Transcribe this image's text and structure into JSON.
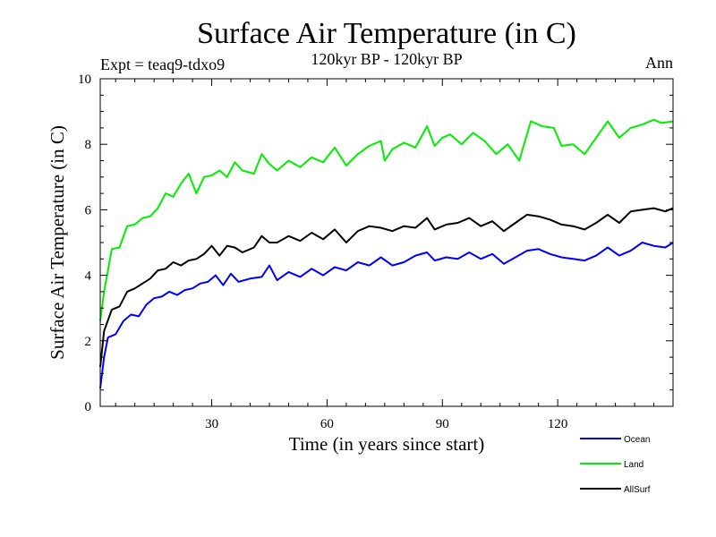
{
  "chart_data": {
    "type": "line",
    "title": "Surface Air Temperature (in C)",
    "subtitle": "120kyr BP - 120kyr BP",
    "experiment_label": "Expt = teaq9-tdxo9",
    "period_label": "Ann",
    "xlabel": "Time (in years since start)",
    "ylabel": "Surface Air Temperature (in C)",
    "xlim": [
      1,
      150
    ],
    "ylim": [
      0,
      10
    ],
    "x_ticks": [
      30,
      60,
      90,
      120
    ],
    "x_tick_labels": [
      "30",
      "60",
      "90",
      "120"
    ],
    "y_ticks": [
      0,
      2,
      4,
      6,
      8,
      10
    ],
    "y_tick_labels": [
      "0",
      "2",
      "4",
      "6",
      "8",
      "10"
    ],
    "y_minor_step": 0.5,
    "x_minor_step": 5,
    "legend_position": "bottom-right",
    "series": [
      {
        "name": "Ocean",
        "color": "#0000ff",
        "points": [
          [
            1,
            0.55
          ],
          [
            2,
            1.5
          ],
          [
            3,
            2.1
          ],
          [
            5,
            2.2
          ],
          [
            7,
            2.6
          ],
          [
            9,
            2.8
          ],
          [
            11,
            2.75
          ],
          [
            13,
            3.1
          ],
          [
            15,
            3.3
          ],
          [
            17,
            3.35
          ],
          [
            19,
            3.5
          ],
          [
            21,
            3.4
          ],
          [
            23,
            3.55
          ],
          [
            25,
            3.6
          ],
          [
            27,
            3.75
          ],
          [
            29,
            3.8
          ],
          [
            31,
            4.0
          ],
          [
            33,
            3.7
          ],
          [
            35,
            4.05
          ],
          [
            37,
            3.8
          ],
          [
            40,
            3.9
          ],
          [
            43,
            3.95
          ],
          [
            45,
            4.3
          ],
          [
            47,
            3.85
          ],
          [
            50,
            4.1
          ],
          [
            53,
            3.95
          ],
          [
            56,
            4.2
          ],
          [
            59,
            4.0
          ],
          [
            62,
            4.25
          ],
          [
            65,
            4.15
          ],
          [
            68,
            4.4
          ],
          [
            71,
            4.3
          ],
          [
            74,
            4.55
          ],
          [
            77,
            4.3
          ],
          [
            80,
            4.4
          ],
          [
            83,
            4.6
          ],
          [
            86,
            4.7
          ],
          [
            88,
            4.45
          ],
          [
            91,
            4.55
          ],
          [
            94,
            4.5
          ],
          [
            97,
            4.7
          ],
          [
            100,
            4.5
          ],
          [
            103,
            4.65
          ],
          [
            106,
            4.35
          ],
          [
            109,
            4.55
          ],
          [
            112,
            4.75
          ],
          [
            115,
            4.8
          ],
          [
            118,
            4.65
          ],
          [
            121,
            4.55
          ],
          [
            124,
            4.5
          ],
          [
            127,
            4.45
          ],
          [
            130,
            4.6
          ],
          [
            133,
            4.85
          ],
          [
            136,
            4.6
          ],
          [
            139,
            4.75
          ],
          [
            142,
            5.0
          ],
          [
            145,
            4.9
          ],
          [
            148,
            4.85
          ],
          [
            150,
            5.0
          ]
        ]
      },
      {
        "name": "Land",
        "color": "#00ee00",
        "points": [
          [
            1,
            2.6
          ],
          [
            2,
            3.5
          ],
          [
            4,
            4.8
          ],
          [
            6,
            4.85
          ],
          [
            8,
            5.5
          ],
          [
            10,
            5.55
          ],
          [
            12,
            5.75
          ],
          [
            14,
            5.8
          ],
          [
            16,
            6.05
          ],
          [
            18,
            6.5
          ],
          [
            20,
            6.4
          ],
          [
            22,
            6.8
          ],
          [
            24,
            7.1
          ],
          [
            26,
            6.5
          ],
          [
            28,
            7.0
          ],
          [
            30,
            7.05
          ],
          [
            32,
            7.2
          ],
          [
            34,
            7.0
          ],
          [
            36,
            7.45
          ],
          [
            38,
            7.2
          ],
          [
            41,
            7.1
          ],
          [
            43,
            7.7
          ],
          [
            45,
            7.4
          ],
          [
            47,
            7.2
          ],
          [
            50,
            7.5
          ],
          [
            53,
            7.3
          ],
          [
            56,
            7.6
          ],
          [
            59,
            7.45
          ],
          [
            62,
            7.9
          ],
          [
            65,
            7.35
          ],
          [
            68,
            7.7
          ],
          [
            71,
            7.95
          ],
          [
            74,
            8.1
          ],
          [
            75,
            7.5
          ],
          [
            77,
            7.85
          ],
          [
            80,
            8.05
          ],
          [
            83,
            7.9
          ],
          [
            86,
            8.55
          ],
          [
            88,
            7.95
          ],
          [
            90,
            8.2
          ],
          [
            92,
            8.3
          ],
          [
            95,
            8.0
          ],
          [
            98,
            8.35
          ],
          [
            101,
            8.1
          ],
          [
            104,
            7.7
          ],
          [
            107,
            8.0
          ],
          [
            110,
            7.5
          ],
          [
            113,
            8.7
          ],
          [
            116,
            8.55
          ],
          [
            119,
            8.5
          ],
          [
            121,
            7.95
          ],
          [
            124,
            8.0
          ],
          [
            127,
            7.7
          ],
          [
            130,
            8.2
          ],
          [
            133,
            8.7
          ],
          [
            136,
            8.2
          ],
          [
            139,
            8.5
          ],
          [
            142,
            8.6
          ],
          [
            145,
            8.75
          ],
          [
            147,
            8.65
          ],
          [
            150,
            8.7
          ]
        ]
      },
      {
        "name": "AllSurf",
        "color": "#000000",
        "points": [
          [
            1,
            1.2
          ],
          [
            2,
            2.3
          ],
          [
            4,
            2.95
          ],
          [
            6,
            3.05
          ],
          [
            8,
            3.5
          ],
          [
            10,
            3.6
          ],
          [
            12,
            3.75
          ],
          [
            14,
            3.9
          ],
          [
            16,
            4.15
          ],
          [
            18,
            4.2
          ],
          [
            20,
            4.4
          ],
          [
            22,
            4.3
          ],
          [
            24,
            4.45
          ],
          [
            26,
            4.5
          ],
          [
            28,
            4.65
          ],
          [
            30,
            4.9
          ],
          [
            32,
            4.6
          ],
          [
            34,
            4.9
          ],
          [
            36,
            4.85
          ],
          [
            38,
            4.7
          ],
          [
            41,
            4.85
          ],
          [
            43,
            5.2
          ],
          [
            45,
            5.0
          ],
          [
            47,
            5.0
          ],
          [
            50,
            5.2
          ],
          [
            53,
            5.05
          ],
          [
            56,
            5.3
          ],
          [
            59,
            5.1
          ],
          [
            62,
            5.4
          ],
          [
            65,
            5.0
          ],
          [
            68,
            5.35
          ],
          [
            71,
            5.5
          ],
          [
            74,
            5.45
          ],
          [
            77,
            5.35
          ],
          [
            80,
            5.5
          ],
          [
            83,
            5.45
          ],
          [
            86,
            5.75
          ],
          [
            88,
            5.4
          ],
          [
            91,
            5.55
          ],
          [
            94,
            5.6
          ],
          [
            97,
            5.75
          ],
          [
            100,
            5.5
          ],
          [
            103,
            5.65
          ],
          [
            106,
            5.35
          ],
          [
            109,
            5.6
          ],
          [
            112,
            5.85
          ],
          [
            115,
            5.8
          ],
          [
            118,
            5.7
          ],
          [
            121,
            5.55
          ],
          [
            124,
            5.5
          ],
          [
            127,
            5.4
          ],
          [
            130,
            5.6
          ],
          [
            133,
            5.85
          ],
          [
            136,
            5.6
          ],
          [
            139,
            5.95
          ],
          [
            142,
            6.0
          ],
          [
            145,
            6.05
          ],
          [
            148,
            5.95
          ],
          [
            150,
            6.05
          ]
        ]
      }
    ]
  }
}
